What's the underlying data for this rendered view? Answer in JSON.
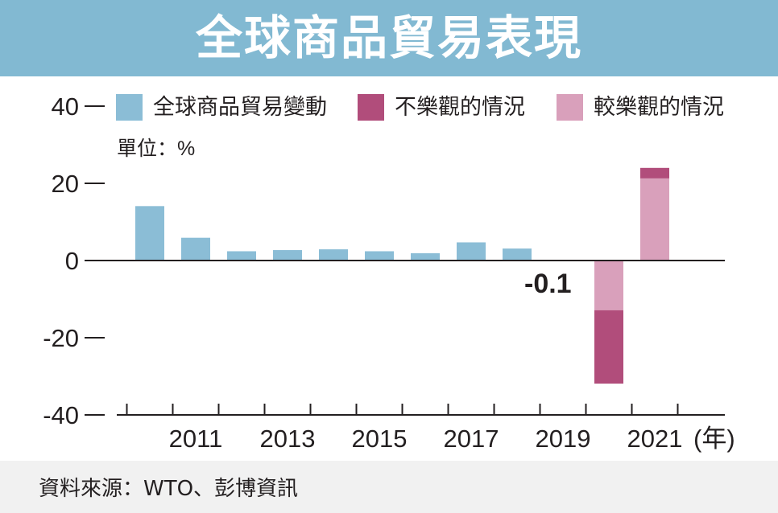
{
  "title": "全球商品貿易表現",
  "source": "資料來源：WTO、彭博資訊",
  "legend": [
    {
      "label": "全球商品貿易變動",
      "color": "#8bbdd6"
    },
    {
      "label": "不樂觀的情況",
      "color": "#b14d7b"
    },
    {
      "label": "較樂觀的情況",
      "color": "#d9a0bb"
    }
  ],
  "chart_data": {
    "type": "bar",
    "unit_label": "單位：%",
    "ylim": [
      -40,
      40
    ],
    "yticks": [
      "40",
      "20",
      "0",
      "-20",
      "-40"
    ],
    "ytick_values": [
      40,
      20,
      0,
      -20,
      -40
    ],
    "xtick_labels": [
      "2011",
      "2013",
      "2015",
      "2017",
      "2019",
      "2021"
    ],
    "x_unit": "(年)",
    "categories": [
      "2010",
      "2011",
      "2012",
      "2013",
      "2014",
      "2015",
      "2016",
      "2017",
      "2018",
      "2019",
      "2020",
      "2021"
    ],
    "series": [
      {
        "name": "全球商品貿易變動",
        "values": [
          14.1,
          5.9,
          2.4,
          2.7,
          2.9,
          2.4,
          1.9,
          4.7,
          3.1,
          -0.1,
          null,
          null
        ]
      },
      {
        "name": "較樂觀的情況",
        "values": [
          null,
          null,
          null,
          null,
          null,
          null,
          null,
          null,
          null,
          null,
          -12.9,
          21.3
        ]
      },
      {
        "name": "不樂觀的情況",
        "values": [
          null,
          null,
          null,
          null,
          null,
          null,
          null,
          null,
          null,
          null,
          -31.9,
          24.0
        ]
      }
    ],
    "annotations": [
      {
        "category": "2019",
        "text": "-0.1"
      }
    ],
    "grid": false,
    "legend_position": "top"
  }
}
